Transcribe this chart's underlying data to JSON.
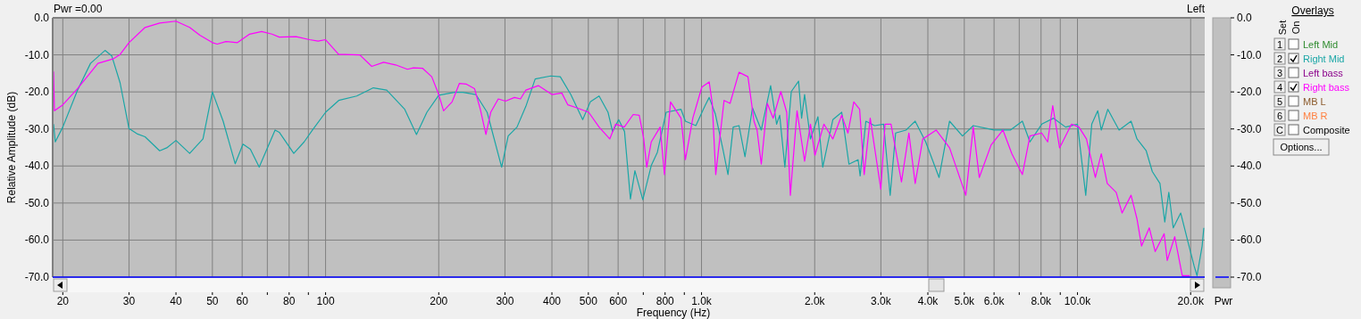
{
  "chart_data": {
    "type": "line",
    "xlabel": "Frequency (Hz)",
    "ylabel": "Relative Amplitude (dB)",
    "y2label": "Pwr",
    "legend_title": "Overlays",
    "legend": "right",
    "grid": true,
    "log": "x",
    "xlim": [
      18.8,
      21800
    ],
    "ylim": [
      -70,
      0
    ],
    "y2lim": [
      -70,
      0
    ],
    "xticks": [
      20,
      30,
      40,
      50,
      60,
      {
        "value": 70,
        "label": null
      },
      80,
      {
        "value": 90,
        "label": null
      },
      100,
      200,
      300,
      400,
      500,
      600,
      {
        "value": 700,
        "label": null
      },
      800,
      {
        "value": 900,
        "label": null
      },
      {
        "value": 1000,
        "label": "1.0k"
      },
      {
        "value": 2000,
        "label": "2.0k"
      },
      {
        "value": 3000,
        "label": "3.0k"
      },
      {
        "value": 4000,
        "label": "4.0k"
      },
      {
        "value": 5000,
        "label": "5.0k"
      },
      {
        "value": 6000,
        "label": "6.0k"
      },
      {
        "value": 7000,
        "label": null
      },
      {
        "value": 8000,
        "label": "8.0k"
      },
      {
        "value": 9000,
        "label": null
      },
      {
        "value": 10000,
        "label": "10.0k"
      },
      {
        "value": 20000,
        "label": "20.0k"
      }
    ],
    "yticks": [
      {
        "value": 0,
        "label": "0.0"
      },
      {
        "value": -10,
        "label": "-10.0"
      },
      {
        "value": -20,
        "label": "-20.0"
      },
      {
        "value": -30,
        "label": "-30.0"
      },
      {
        "value": -40,
        "label": "-40.0"
      },
      {
        "value": -50,
        "label": "-50.0"
      },
      {
        "value": -60,
        "label": "-60.0"
      },
      {
        "value": -70,
        "label": "-70.0"
      }
    ],
    "y2ticks": [
      {
        "value": 0,
        "label": "0.0"
      },
      {
        "value": -10,
        "label": "-10.0"
      },
      {
        "value": -20,
        "label": "-20.0"
      },
      {
        "value": -30,
        "label": "-30.0"
      },
      {
        "value": -40,
        "label": "-40.0"
      },
      {
        "value": -50,
        "label": "-50.0"
      },
      {
        "value": -60,
        "label": "-60.0"
      },
      {
        "value": -70,
        "label": "-70.0"
      }
    ],
    "annotations": [
      "Pwr =0.00",
      "Left",
      "Set",
      "On",
      "1",
      "2",
      "3",
      "4",
      "5",
      "6",
      "C",
      "Options...",
      "Left Mid",
      "Left bass",
      "MB L",
      "MB R",
      "Composite"
    ],
    "series": [
      {
        "name": "Right Mid",
        "color": "#1aa6a6",
        "x": [
          18.9,
          19.1,
          20,
          21.9,
          23.7,
          25.9,
          27,
          28.4,
          30,
          31.5,
          33.1,
          36.2,
          37.8,
          40,
          43.5,
          47.2,
          50,
          53.4,
          57.5,
          60.3,
          63.1,
          66.6,
          73.4,
          75.3,
          82.3,
          87.7,
          92.3,
          100,
          108.4,
          121,
          134,
          145.4,
          162.4,
          174.5,
          186,
          200,
          220,
          232,
          251,
          269,
          294,
          306,
          323,
          341,
          361,
          397,
          421,
          449,
          483,
          506,
          534,
          564,
          580,
          602,
          624,
          647,
          665,
          698,
          735,
          763,
          805,
          882,
          906,
          966,
          1020,
          1048,
          1088,
          1138,
          1176,
          1214,
          1258,
          1305,
          1366,
          1442,
          1527,
          1584,
          1614,
          1666,
          1733,
          1812,
          1846,
          1880,
          1949,
          2040,
          2101,
          2235,
          2360,
          2467,
          2609,
          2642,
          2736,
          2886,
          3051,
          3175,
          3283,
          3499,
          3701,
          3947,
          4284,
          4568,
          4944,
          5283,
          5999,
          6629,
          7135,
          7474,
          8034,
          8640,
          9296,
          10000,
          10519,
          10915,
          11323,
          11570,
          12043,
          12903,
          13885,
          14399,
          15234,
          15814,
          16573,
          17070,
          17497,
          17975,
          18821,
          19698,
          20443,
          20794,
          21458,
          21680
        ],
        "values": [
          -28.7,
          -33.5,
          -29.5,
          -19.5,
          -12.3,
          -8.8,
          -10.3,
          -17.5,
          -29.9,
          -31.3,
          -32.1,
          -35.9,
          -35.1,
          -33.1,
          -36.6,
          -32.7,
          -20.0,
          -27.9,
          -39.4,
          -34.1,
          -35.5,
          -40.3,
          -30.3,
          -30.9,
          -36.6,
          -33.5,
          -30.3,
          -25.5,
          -22.3,
          -21.1,
          -18.9,
          -19.5,
          -24.7,
          -31.5,
          -25.5,
          -20.9,
          -20.1,
          -20.1,
          -20.7,
          -25.5,
          -40.3,
          -31.9,
          -29.5,
          -23.9,
          -16.5,
          -15.7,
          -15.9,
          -20.7,
          -27.5,
          -22.7,
          -21.1,
          -25.5,
          -30.7,
          -27.5,
          -30.7,
          -48.9,
          -41.3,
          -49.1,
          -39.9,
          -36.3,
          -25.5,
          -24.7,
          -27.9,
          -29.1,
          -23.9,
          -21.5,
          -25.9,
          -35.1,
          -42.3,
          -29.5,
          -29.1,
          -37.5,
          -24.3,
          -30.3,
          -18.3,
          -28.7,
          -26.3,
          -40.3,
          -19.9,
          -17.1,
          -27.1,
          -20.7,
          -32.7,
          -26.7,
          -40.3,
          -27.5,
          -25.5,
          -39.5,
          -38.3,
          -42.7,
          -27.9,
          -29.1,
          -28.7,
          -47.9,
          -31.1,
          -30.3,
          -27.9,
          -33.5,
          -43.1,
          -27.9,
          -31.9,
          -29.1,
          -30.3,
          -30.3,
          -27.9,
          -33.5,
          -28.7,
          -27.1,
          -29.5,
          -28.7,
          -47.9,
          -28.7,
          -25.1,
          -30.3,
          -24.7,
          -30.3,
          -27.9,
          -32.7,
          -35.9,
          -41.5,
          -44.7,
          -55.1,
          -47.1,
          -56.7,
          -52.7,
          -60.7,
          -67.1,
          -69.6,
          -61.6,
          -56.7
        ]
      },
      {
        "name": "Right bass",
        "color": "#ff00ff",
        "x": [
          18.9,
          19.0,
          20,
          21.9,
          24.8,
          27.2,
          28.4,
          30,
          33.1,
          36.2,
          40,
          43.5,
          46.3,
          50,
          51.5,
          54.3,
          58.3,
          62.8,
          67.6,
          72,
          75.3,
          83.5,
          90.6,
          95.5,
          100,
          108.4,
          112.5,
          123.3,
          132.7,
          142.7,
          153.5,
          165.1,
          171.3,
          181,
          191.6,
          200,
          206,
          217,
          227,
          237,
          249,
          258,
          267,
          275,
          288,
          301,
          318,
          330,
          341,
          368,
          400,
          425,
          441,
          466,
          501,
          534,
          570,
          591,
          623,
          658,
          683,
          702,
          715,
          735,
          776,
          797,
          827,
          882,
          906,
          948,
          1002,
          1048,
          1068,
          1091,
          1148,
          1191,
          1258,
          1329,
          1379,
          1405,
          1442,
          1496,
          1551,
          1625,
          1685,
          1723,
          1795,
          1880,
          1949,
          2003,
          2116,
          2235,
          2360,
          2451,
          2541,
          2634,
          2708,
          2810,
          2999,
          3077,
          3192,
          3403,
          3561,
          3701,
          3878,
          4207,
          4568,
          5046,
          5283,
          5480,
          5893,
          6336,
          6690,
          7135,
          7474,
          8034,
          8332,
          8594,
          8963,
          9643,
          10092,
          10565,
          11157,
          11570,
          11999,
          12675,
          13144,
          13885,
          14399,
          14807,
          15522,
          16096,
          17003,
          17327,
          18142,
          18999,
          19880
        ],
        "values": [
          -14.5,
          -25.1,
          -23.5,
          -19.1,
          -12.3,
          -11.1,
          -9.9,
          -6.7,
          -2.6,
          -1.4,
          -0.9,
          -2.6,
          -4.7,
          -6.7,
          -7.1,
          -6.4,
          -6.7,
          -4.4,
          -3.7,
          -4.4,
          -5.2,
          -5.1,
          -5.9,
          -6.3,
          -5.9,
          -9.9,
          -9.9,
          -10.0,
          -13.1,
          -12.0,
          -12.7,
          -13.9,
          -13.5,
          -13.6,
          -15.9,
          -20.7,
          -25.1,
          -22.7,
          -17.7,
          -17.9,
          -19.1,
          -24.7,
          -31.5,
          -25.5,
          -21.9,
          -22.5,
          -21.5,
          -21.9,
          -19.5,
          -18.3,
          -20.7,
          -20.3,
          -23.5,
          -24.3,
          -25.5,
          -29.5,
          -32.7,
          -28.7,
          -29.5,
          -26.1,
          -26.3,
          -32.7,
          -40.3,
          -33.5,
          -29.5,
          -42.3,
          -22.7,
          -27.1,
          -38.3,
          -27.1,
          -18.7,
          -17.3,
          -23.1,
          -42.3,
          -22.3,
          -23.1,
          -14.7,
          -15.9,
          -27.9,
          -30.3,
          -39.5,
          -23.1,
          -27.1,
          -19.9,
          -25.5,
          -47.9,
          -25.1,
          -38.7,
          -28.7,
          -37.1,
          -28.7,
          -32.7,
          -26.3,
          -31.1,
          -22.7,
          -24.7,
          -42.3,
          -27.1,
          -46.3,
          -28.7,
          -28.7,
          -44.3,
          -31.1,
          -44.7,
          -32.7,
          -30.3,
          -35.1,
          -47.9,
          -29.5,
          -43.1,
          -34.3,
          -30.3,
          -36.7,
          -42.3,
          -31.9,
          -31.1,
          -33.5,
          -23.7,
          -35.1,
          -28.7,
          -29.5,
          -32.7,
          -43.1,
          -36.7,
          -44.7,
          -47.1,
          -52.7,
          -47.9,
          -54.3,
          -61.6,
          -56.7,
          -63.1,
          -58.3,
          -65.5,
          -59.1,
          -69.6,
          -69.6
        ]
      }
    ]
  }
}
